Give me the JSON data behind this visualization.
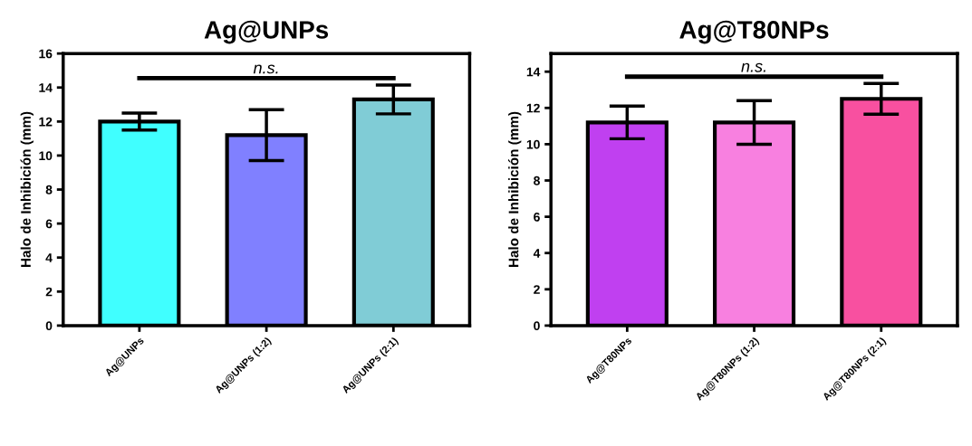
{
  "chart_data": [
    {
      "type": "bar",
      "title": "Ag@UNPs",
      "ylabel": "Halo de Inhibición (mm)",
      "categories": [
        "Ag@UNPs",
        "Ag@UNPs (1:2)",
        "Ag@UNPs (2:1)"
      ],
      "values": [
        12.0,
        11.2,
        13.3
      ],
      "errors": [
        0.5,
        1.5,
        0.85
      ],
      "colors": [
        "#40ffff",
        "#8080ff",
        "#80ccd6"
      ],
      "ylim": [
        0,
        16
      ],
      "yticks": [
        0,
        2,
        4,
        6,
        8,
        10,
        12,
        14,
        16
      ],
      "grid": false,
      "annotations": [
        "n.s."
      ]
    },
    {
      "type": "bar",
      "title": "Ag@T80NPs",
      "ylabel": "Halo de Inhibición (mm)",
      "categories": [
        "Ag@T80NPs",
        "Ag@T80NPs (1:2)",
        "Ag@T80NPs (2:1)"
      ],
      "values": [
        11.2,
        11.2,
        12.5
      ],
      "errors": [
        0.9,
        1.2,
        0.85
      ],
      "colors": [
        "#c040f0",
        "#f880e0",
        "#f850a0"
      ],
      "ylim": [
        0,
        15
      ],
      "yticks": [
        0,
        2,
        4,
        6,
        8,
        10,
        12,
        14
      ],
      "grid": false,
      "annotations": [
        "n.s."
      ]
    }
  ]
}
